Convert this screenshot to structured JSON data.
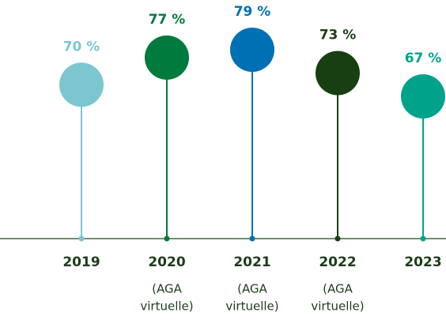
{
  "chart_data": {
    "type": "lollipop",
    "categories": [
      "2019",
      "2020",
      "2021",
      "2022",
      "2023"
    ],
    "notes": [
      null,
      [
        "(AGA",
        "virtuelle)"
      ],
      [
        "(AGA",
        "virtuelle)"
      ],
      [
        "(AGA",
        "virtuelle)"
      ],
      null
    ],
    "values": [
      70,
      77,
      79,
      73,
      67
    ],
    "value_labels": [
      "70 %",
      "77 %",
      "79 %",
      "73 %",
      "67 %"
    ],
    "colors": [
      "#7cc6d2",
      "#007a3d",
      "#0070b5",
      "#173f12",
      "#00a38a"
    ]
  }
}
